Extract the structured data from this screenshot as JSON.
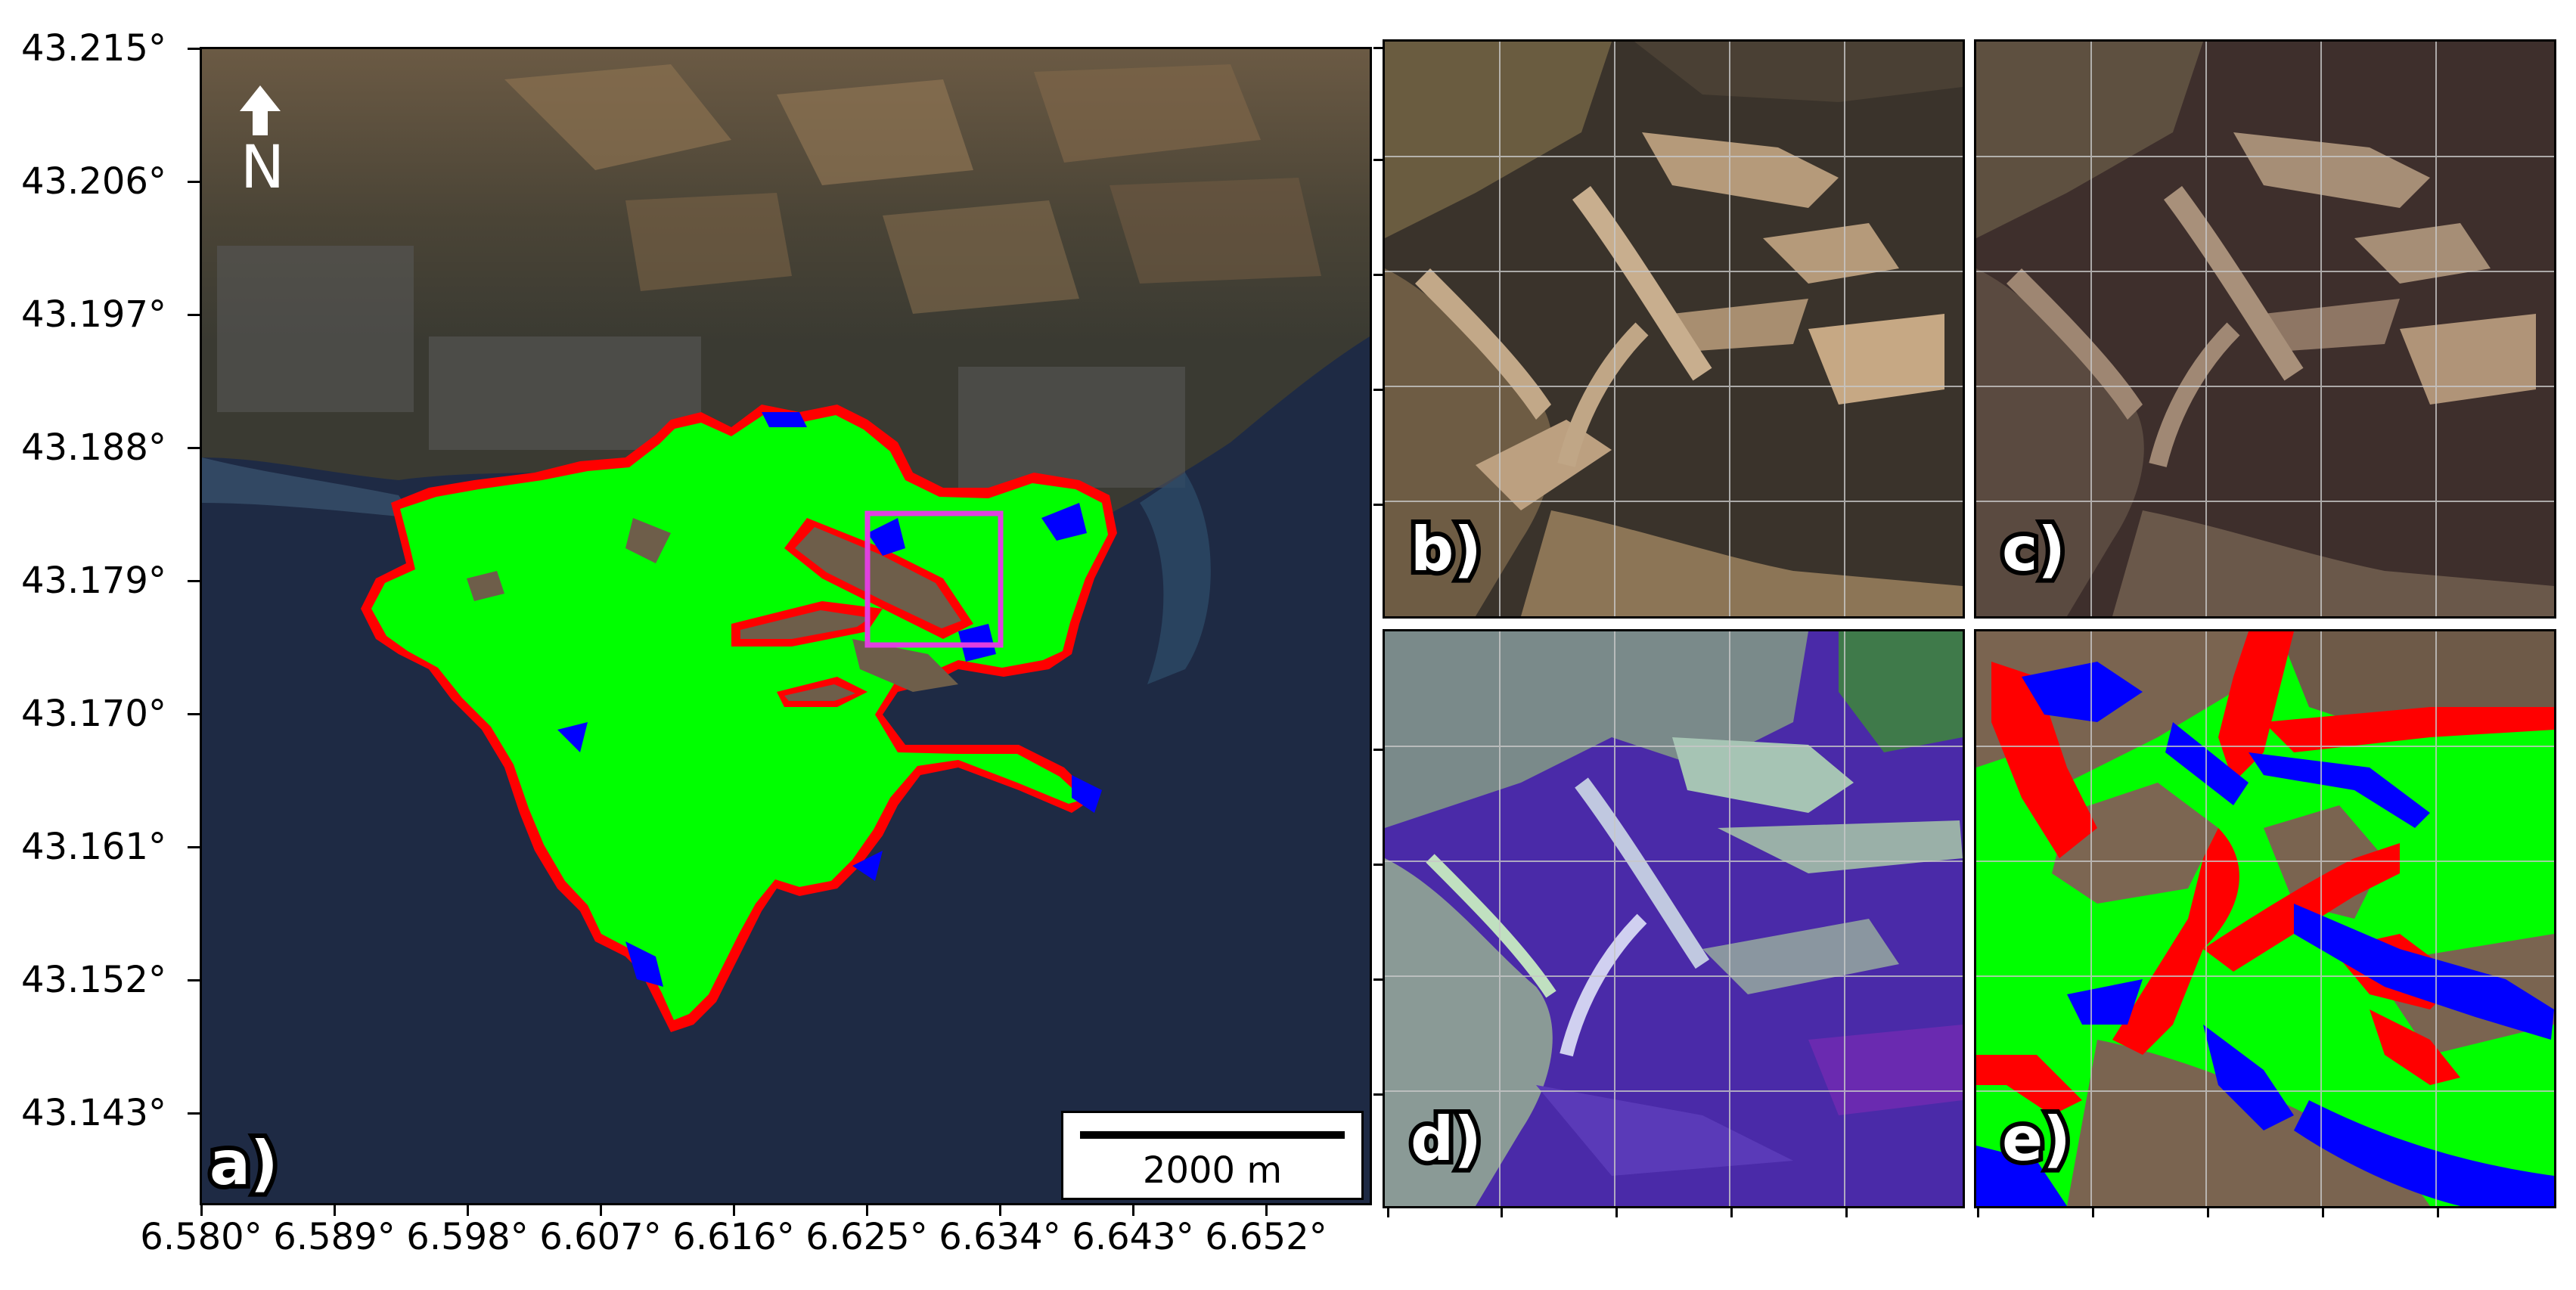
{
  "main_map": {
    "panel_label": "a)",
    "north_arrow_label": "N",
    "scale_bar_label": "2000 m",
    "lat_ticks": [
      "43.215°",
      "43.206°",
      "43.197°",
      "43.188°",
      "43.179°",
      "43.170°",
      "43.161°",
      "43.152°",
      "43.143°"
    ],
    "lon_ticks": [
      "6.580°",
      "6.589°",
      "6.598°",
      "6.607°",
      "6.616°",
      "6.625°",
      "6.634°",
      "6.643°",
      "6.652°"
    ],
    "zoom_box_color": "#e040e0"
  },
  "inset_panels": [
    {
      "label": "b)"
    },
    {
      "label": "c)"
    },
    {
      "label": "d)"
    },
    {
      "label": "e)"
    }
  ],
  "colors": {
    "burned_agree": "#00ff00",
    "class_red": "#ff0000",
    "class_blue": "#0000ff",
    "sea": "#1e2a44"
  }
}
